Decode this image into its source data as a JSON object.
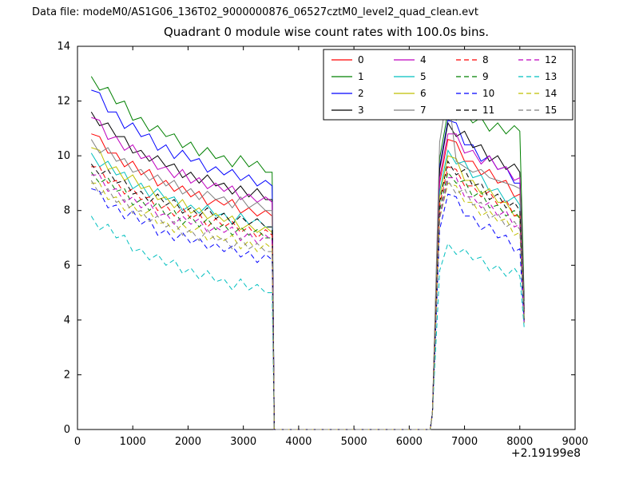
{
  "header": {
    "data_file_label": "Data file: modeM0/AS1G06_136T02_9000000876_06527cztM0_level2_quad_clean.evt"
  },
  "chart_data": {
    "type": "line",
    "title": "Quadrant 0 module wise count rates with 100.0s bins.",
    "xlabel": "",
    "ylabel": "",
    "xlim": [
      0,
      9000
    ],
    "ylim": [
      0,
      14
    ],
    "xticks": [
      0,
      1000,
      2000,
      3000,
      4000,
      5000,
      6000,
      7000,
      8000,
      9000
    ],
    "yticks": [
      0,
      2,
      4,
      6,
      8,
      10,
      12,
      14
    ],
    "x_offset_label": "+2.19199e8",
    "grid": false,
    "legend_position": "upper center, 4 columns: solid 0-7, dashed 8-15",
    "axis_color": "#000000",
    "background_color": "#ffffff",
    "x": [
      250,
      400,
      550,
      700,
      850,
      1000,
      1150,
      1300,
      1450,
      1600,
      1750,
      1900,
      2050,
      2200,
      2350,
      2500,
      2650,
      2800,
      2950,
      3100,
      3250,
      3400,
      3520,
      3560,
      6380,
      6420,
      6550,
      6700,
      6850,
      7000,
      7150,
      7300,
      7450,
      7600,
      7750,
      7900,
      8000,
      8080
    ],
    "series": [
      {
        "name": "0",
        "color": "#ff0000",
        "dash": "solid",
        "values": [
          10.8,
          10.7,
          10.1,
          10.1,
          9.6,
          9.8,
          9.3,
          9.5,
          8.9,
          9.1,
          8.7,
          8.9,
          8.5,
          8.7,
          8.2,
          8.4,
          8.2,
          8.4,
          7.9,
          8.1,
          7.8,
          8.0,
          7.8,
          0,
          0,
          0.6,
          9.0,
          10.6,
          10.5,
          9.8,
          9.8,
          9.3,
          9.5,
          9.0,
          9.1,
          8.5,
          8.6,
          4.3
        ]
      },
      {
        "name": "1",
        "color": "#008000",
        "dash": "solid",
        "values": [
          12.9,
          12.4,
          12.5,
          11.9,
          12.0,
          11.3,
          11.4,
          10.9,
          11.1,
          10.7,
          10.8,
          10.3,
          10.5,
          10.0,
          10.3,
          9.9,
          10.0,
          9.6,
          10.0,
          9.6,
          9.8,
          9.4,
          9.4,
          0,
          0,
          0.6,
          9.9,
          11.6,
          11.3,
          11.6,
          11.2,
          11.4,
          10.9,
          11.2,
          10.8,
          11.1,
          10.9,
          4.7
        ]
      },
      {
        "name": "2",
        "color": "#0000ff",
        "dash": "solid",
        "values": [
          12.4,
          12.3,
          11.6,
          11.6,
          11.0,
          11.2,
          10.7,
          10.8,
          10.2,
          10.4,
          9.9,
          10.2,
          9.8,
          9.9,
          9.4,
          9.6,
          9.3,
          9.5,
          9.1,
          9.3,
          8.9,
          9.1,
          8.9,
          0,
          0,
          0.6,
          9.6,
          11.3,
          11.2,
          10.4,
          10.4,
          9.8,
          10.0,
          9.5,
          9.6,
          9.0,
          9.0,
          4.4
        ]
      },
      {
        "name": "3",
        "color": "#000000",
        "dash": "solid",
        "values": [
          11.6,
          11.1,
          11.2,
          10.7,
          10.7,
          10.1,
          10.2,
          9.8,
          10.0,
          9.6,
          9.7,
          9.2,
          9.4,
          9.0,
          9.3,
          8.9,
          9.0,
          8.6,
          8.9,
          8.5,
          8.8,
          8.4,
          8.4,
          0,
          0,
          0.6,
          9.5,
          11.2,
          10.7,
          10.9,
          10.3,
          10.4,
          9.8,
          10.0,
          9.5,
          9.7,
          9.4,
          4.5
        ]
      },
      {
        "name": "4",
        "color": "#bf00bf",
        "dash": "solid",
        "values": [
          11.4,
          11.3,
          10.6,
          10.7,
          10.2,
          10.4,
          9.9,
          10.0,
          9.5,
          9.6,
          9.2,
          9.5,
          9.0,
          9.2,
          8.8,
          9.0,
          8.7,
          8.9,
          8.4,
          8.6,
          8.3,
          8.5,
          8.3,
          0,
          0,
          0.6,
          9.2,
          10.8,
          10.8,
          10.1,
          10.2,
          9.7,
          10.0,
          9.5,
          9.6,
          9.1,
          9.2,
          4.4
        ]
      },
      {
        "name": "5",
        "color": "#00bfbf",
        "dash": "solid",
        "values": [
          10.1,
          9.6,
          9.8,
          9.3,
          9.4,
          8.8,
          9.0,
          8.5,
          8.8,
          8.4,
          8.5,
          8.0,
          8.2,
          7.9,
          8.2,
          7.8,
          7.9,
          7.5,
          7.9,
          7.5,
          7.7,
          7.4,
          7.4,
          0,
          0,
          0.6,
          8.7,
          10.2,
          9.7,
          9.8,
          9.2,
          9.3,
          8.7,
          8.8,
          8.3,
          8.5,
          8.2,
          4.2
        ]
      },
      {
        "name": "6",
        "color": "#bfbf00",
        "dash": "solid",
        "values": [
          10.3,
          10.2,
          9.5,
          9.6,
          9.1,
          9.3,
          8.8,
          8.9,
          8.4,
          8.5,
          8.1,
          8.4,
          7.9,
          8.1,
          7.7,
          7.9,
          7.6,
          7.8,
          7.3,
          7.5,
          7.2,
          7.4,
          7.2,
          0,
          0,
          0.6,
          8.5,
          10.0,
          9.9,
          9.1,
          9.1,
          8.6,
          8.8,
          8.3,
          8.3,
          7.8,
          7.8,
          4.1
        ]
      },
      {
        "name": "7",
        "color": "#7f7f7f",
        "dash": "solid",
        "values": [
          10.6,
          10.1,
          10.3,
          9.8,
          9.9,
          9.4,
          9.5,
          9.1,
          9.3,
          8.9,
          9.1,
          8.6,
          8.8,
          8.4,
          8.7,
          8.4,
          8.5,
          8.1,
          8.5,
          8.1,
          8.3,
          8.0,
          8.0,
          0,
          0,
          0.6,
          10.5,
          12.4,
          9.8,
          9.6,
          9.4,
          9.5,
          9.2,
          9.1,
          9.0,
          8.9,
          8.8,
          4.4
        ]
      },
      {
        "name": "8",
        "color": "#ff0000",
        "dash": "dashed",
        "values": [
          9.6,
          9.6,
          9.0,
          9.1,
          8.6,
          8.8,
          8.4,
          8.5,
          8.0,
          8.2,
          7.8,
          8.1,
          7.7,
          7.9,
          7.4,
          7.7,
          7.4,
          7.6,
          7.2,
          7.4,
          7.0,
          7.3,
          7.1,
          0,
          0,
          0.6,
          8.2,
          9.6,
          9.5,
          8.9,
          8.9,
          8.5,
          8.7,
          8.2,
          8.4,
          7.8,
          7.9,
          4.0
        ]
      },
      {
        "name": "9",
        "color": "#008000",
        "dash": "dashed",
        "values": [
          9.4,
          9.0,
          9.2,
          8.7,
          8.8,
          8.2,
          8.4,
          8.0,
          8.3,
          7.8,
          8.0,
          7.5,
          7.8,
          7.4,
          7.7,
          7.3,
          7.5,
          7.1,
          7.4,
          7.1,
          7.3,
          7.0,
          7.0,
          0,
          0,
          0.6,
          8.0,
          9.4,
          9.0,
          9.1,
          8.5,
          8.7,
          8.1,
          8.2,
          7.8,
          8.0,
          7.7,
          3.9
        ]
      },
      {
        "name": "10",
        "color": "#0000ff",
        "dash": "dashed",
        "values": [
          8.8,
          8.7,
          8.1,
          8.2,
          7.7,
          8.0,
          7.5,
          7.7,
          7.1,
          7.3,
          6.9,
          7.2,
          6.8,
          7.0,
          6.6,
          6.8,
          6.5,
          6.7,
          6.3,
          6.5,
          6.1,
          6.4,
          6.2,
          0,
          0,
          0.6,
          7.3,
          8.6,
          8.5,
          7.8,
          7.8,
          7.3,
          7.5,
          7.0,
          7.1,
          6.5,
          6.6,
          3.8
        ]
      },
      {
        "name": "11",
        "color": "#000000",
        "dash": "dashed",
        "values": [
          9.7,
          9.3,
          9.5,
          9.0,
          9.1,
          8.6,
          8.7,
          8.3,
          8.6,
          8.2,
          8.4,
          7.9,
          8.1,
          7.8,
          8.1,
          7.7,
          7.9,
          7.5,
          7.8,
          7.5,
          7.7,
          7.4,
          7.4,
          0,
          0,
          0.6,
          8.3,
          9.8,
          9.3,
          9.5,
          8.9,
          9.0,
          8.4,
          8.6,
          8.1,
          8.3,
          8.0,
          4.0
        ]
      },
      {
        "name": "12",
        "color": "#bf00bf",
        "dash": "dashed",
        "values": [
          9.3,
          9.3,
          8.7,
          8.8,
          8.3,
          8.5,
          8.1,
          8.3,
          7.8,
          7.9,
          7.5,
          7.8,
          7.5,
          7.7,
          7.2,
          7.4,
          7.2,
          7.4,
          6.9,
          7.2,
          6.8,
          7.1,
          6.9,
          0,
          0,
          0.6,
          7.8,
          9.2,
          9.2,
          8.5,
          8.5,
          8.1,
          8.3,
          7.8,
          8.0,
          7.4,
          7.5,
          3.9
        ]
      },
      {
        "name": "13",
        "color": "#00bfbf",
        "dash": "dashed",
        "values": [
          7.8,
          7.3,
          7.5,
          7.0,
          7.1,
          6.5,
          6.6,
          6.2,
          6.4,
          6.0,
          6.2,
          5.7,
          5.9,
          5.5,
          5.8,
          5.4,
          5.5,
          5.1,
          5.5,
          5.1,
          5.3,
          5.0,
          5.0,
          0,
          0,
          0.6,
          5.8,
          6.8,
          6.4,
          6.6,
          6.2,
          6.3,
          5.8,
          6.0,
          5.6,
          5.9,
          5.6,
          3.7
        ]
      },
      {
        "name": "14",
        "color": "#bfbf00",
        "dash": "dashed",
        "values": [
          9.0,
          9.0,
          8.4,
          8.5,
          8.0,
          8.2,
          7.8,
          8.0,
          7.5,
          7.6,
          7.2,
          7.5,
          7.2,
          7.4,
          6.9,
          7.1,
          6.9,
          7.1,
          6.6,
          6.9,
          6.5,
          6.8,
          6.6,
          0,
          0,
          0.6,
          7.7,
          9.0,
          8.9,
          8.3,
          8.3,
          7.8,
          8.0,
          7.6,
          7.7,
          7.1,
          7.2,
          3.9
        ]
      },
      {
        "name": "15",
        "color": "#7f7f7f",
        "dash": "dashed",
        "values": [
          9.1,
          8.6,
          8.8,
          8.3,
          8.4,
          7.9,
          8.0,
          7.6,
          7.8,
          7.4,
          7.6,
          7.1,
          7.3,
          6.9,
          7.3,
          6.9,
          7.0,
          6.6,
          7.0,
          6.6,
          6.8,
          6.5,
          6.5,
          0,
          0,
          0.6,
          7.7,
          9.1,
          8.6,
          8.8,
          8.2,
          8.3,
          7.7,
          7.9,
          7.4,
          7.6,
          7.3,
          3.9
        ]
      }
    ]
  }
}
